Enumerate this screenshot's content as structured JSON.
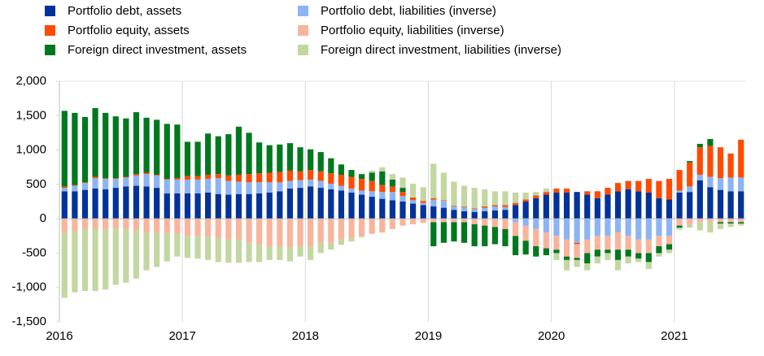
{
  "chart_data": {
    "type": "bar",
    "stacked": true,
    "categories": [
      "2016",
      null,
      null,
      null,
      null,
      null,
      null,
      null,
      null,
      null,
      null,
      null,
      "2017",
      null,
      null,
      null,
      null,
      null,
      null,
      null,
      null,
      null,
      null,
      null,
      "2018",
      null,
      null,
      null,
      null,
      null,
      null,
      null,
      null,
      null,
      null,
      null,
      "2019",
      null,
      null,
      null,
      null,
      null,
      null,
      null,
      null,
      null,
      null,
      null,
      "2020",
      null,
      null,
      null,
      null,
      null,
      null,
      null,
      null,
      null,
      null,
      null,
      "2021",
      null,
      null,
      null,
      null,
      null,
      null
    ],
    "series": [
      {
        "name": "Portfolio debt, assets",
        "color": "#003299",
        "values": [
          400,
          400,
          420,
          440,
          430,
          450,
          470,
          480,
          470,
          450,
          370,
          370,
          370,
          370,
          380,
          360,
          350,
          360,
          360,
          370,
          380,
          400,
          440,
          450,
          470,
          450,
          430,
          410,
          380,
          350,
          320,
          290,
          270,
          250,
          220,
          200,
          180,
          160,
          130,
          110,
          100,
          110,
          120,
          130,
          200,
          250,
          300,
          350,
          380,
          380,
          390,
          350,
          300,
          350,
          400,
          430,
          400,
          380,
          300,
          280,
          380,
          390,
          560,
          460,
          420,
          400,
          400
        ]
      },
      {
        "name": "Portfolio equity, assets",
        "color": "#ff4b00",
        "values": [
          20,
          10,
          10,
          20,
          10,
          10,
          10,
          20,
          20,
          10,
          10,
          20,
          50,
          50,
          60,
          60,
          80,
          100,
          120,
          130,
          140,
          150,
          150,
          130,
          140,
          140,
          150,
          160,
          170,
          170,
          150,
          100,
          80,
          60,
          40,
          30,
          20,
          10,
          10,
          10,
          10,
          20,
          20,
          30,
          30,
          30,
          40,
          40,
          60,
          60,
          -20,
          50,
          100,
          100,
          120,
          120,
          150,
          200,
          250,
          300,
          300,
          350,
          400,
          450,
          450,
          350,
          550
        ]
      },
      {
        "name": "Foreign direct investment, assets",
        "color": "#00781e",
        "values": [
          1100,
          1050,
          950,
          1000,
          950,
          900,
          850,
          900,
          800,
          800,
          800,
          780,
          500,
          500,
          600,
          550,
          600,
          700,
          600,
          450,
          400,
          400,
          400,
          350,
          300,
          280,
          220,
          150,
          100,
          70,
          120,
          200,
          100,
          60,
          0,
          0,
          -350,
          -300,
          -280,
          -300,
          -320,
          -300,
          -250,
          -250,
          -280,
          -200,
          -150,
          -100,
          -50,
          -50,
          -30,
          -150,
          -100,
          -50,
          -150,
          -100,
          -80,
          -130,
          -100,
          -80,
          -30,
          20,
          50,
          100,
          -20,
          -20,
          -20
        ]
      },
      {
        "name": "Portfolio debt, liabilities (inverse)",
        "color": "#8cb4f5",
        "values": [
          50,
          80,
          100,
          150,
          150,
          130,
          130,
          150,
          180,
          180,
          200,
          200,
          200,
          200,
          200,
          230,
          200,
          180,
          170,
          160,
          150,
          130,
          110,
          110,
          100,
          100,
          80,
          70,
          60,
          60,
          80,
          100,
          120,
          80,
          50,
          30,
          100,
          100,
          50,
          60,
          40,
          50,
          60,
          40,
          -50,
          -100,
          -150,
          -200,
          -250,
          -300,
          -350,
          -300,
          -250,
          -250,
          -200,
          -250,
          -300,
          -300,
          -250,
          -250,
          30,
          80,
          80,
          150,
          170,
          200,
          200
        ]
      },
      {
        "name": "Portfolio equity, liabilities (inverse)",
        "color": "#f9b49c",
        "values": [
          -200,
          -170,
          -150,
          -150,
          -150,
          -140,
          -150,
          -170,
          -200,
          -200,
          -200,
          -220,
          -250,
          -250,
          -260,
          -280,
          -300,
          -300,
          -350,
          -380,
          -400,
          -400,
          -420,
          -400,
          -400,
          -350,
          -350,
          -300,
          -280,
          -250,
          -220,
          -200,
          -150,
          -100,
          -80,
          -60,
          -50,
          -50,
          -50,
          -50,
          -80,
          -100,
          -120,
          -150,
          -200,
          -220,
          -250,
          -230,
          -200,
          -250,
          -200,
          -200,
          -200,
          -200,
          -250,
          -200,
          -200,
          -200,
          -150,
          -120,
          -100,
          -80,
          -50,
          -50,
          -50,
          -50,
          -50
        ]
      },
      {
        "name": "Foreign direct investment, liabilities (inverse)",
        "color": "#c3d7a0",
        "values": [
          -950,
          -900,
          -900,
          -900,
          -880,
          -820,
          -780,
          -700,
          -550,
          -500,
          -420,
          -330,
          -320,
          -330,
          -340,
          -350,
          -340,
          -340,
          -280,
          -250,
          -200,
          -200,
          -200,
          -150,
          -200,
          -150,
          -100,
          -80,
          -50,
          -20,
          30,
          60,
          80,
          150,
          200,
          200,
          500,
          400,
          350,
          300,
          300,
          250,
          200,
          200,
          150,
          100,
          50,
          50,
          -100,
          -150,
          -100,
          -100,
          -100,
          -100,
          -150,
          -100,
          -50,
          -100,
          -50,
          -50,
          -30,
          -50,
          -120,
          -150,
          -80,
          -50,
          -30
        ]
      }
    ],
    "ylim": [
      -1500,
      2000
    ],
    "yticks": [
      {
        "value": 2000,
        "label": "2,000"
      },
      {
        "value": 1500,
        "label": "1,500"
      },
      {
        "value": 1000,
        "label": "1,000"
      },
      500,
      0,
      -500,
      {
        "value": -1000,
        "label": "-1,000"
      },
      {
        "value": -1500,
        "label": "-1,500"
      }
    ]
  }
}
